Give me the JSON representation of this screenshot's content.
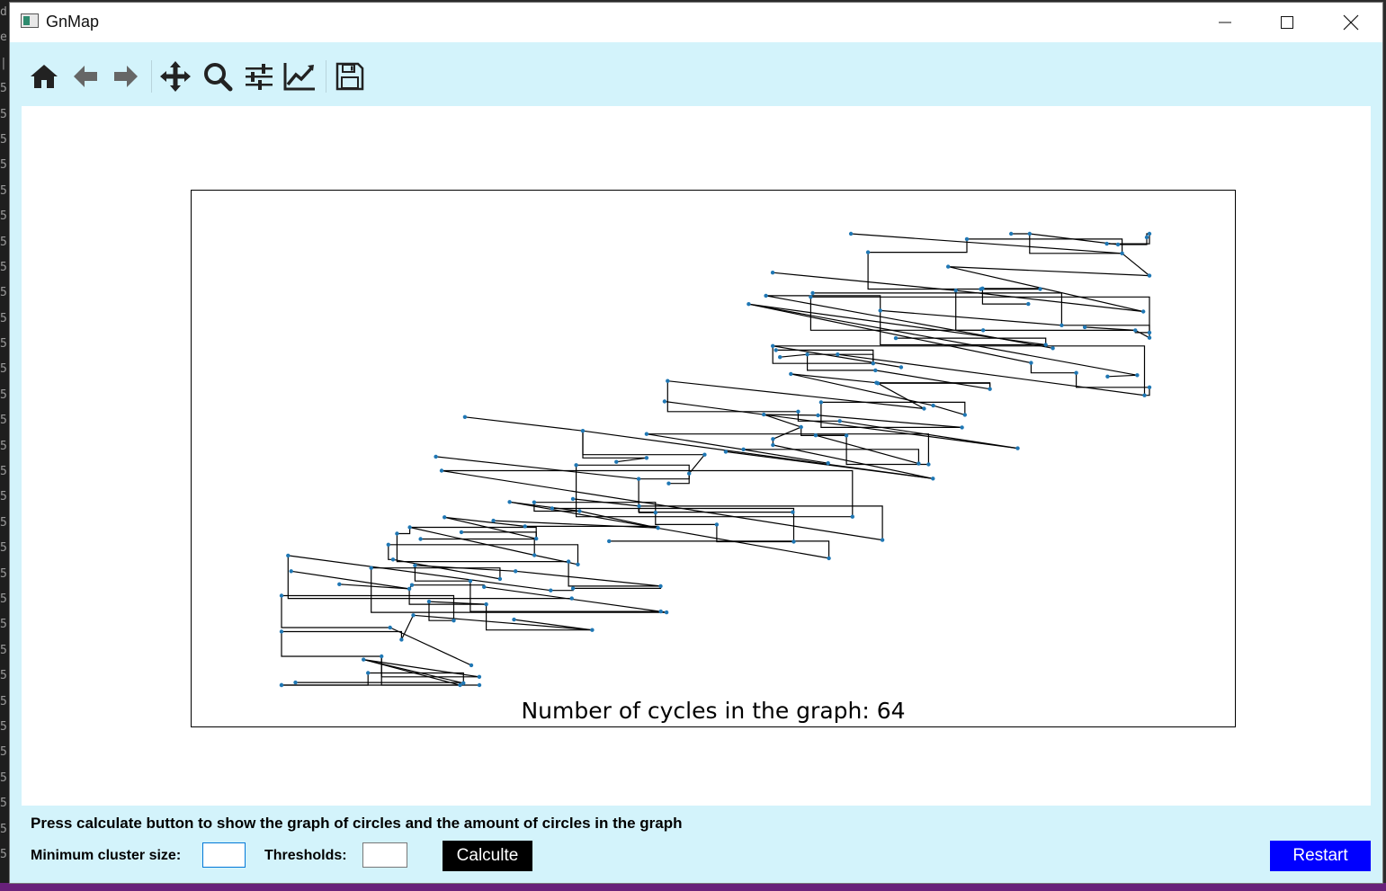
{
  "window": {
    "title": "GnMap"
  },
  "toolbar": {
    "icons": [
      "home-icon",
      "back-arrow-icon",
      "forward-arrow-icon",
      "pan-move-icon",
      "zoom-magnifier-icon",
      "configure-subplots-icon",
      "edit-axis-icon",
      "save-floppy-icon"
    ]
  },
  "chart_data": {
    "type": "network-graph",
    "annotation": "Number of cycles in the graph: 64",
    "node_color": "#1f77b4",
    "edge_color": "#000000",
    "axes_frame": true
  },
  "controls": {
    "prompt": "Press calculate button to show the graph of circles and the amount of circles in the graph",
    "min_cluster_label": "Minimum cluster size:",
    "min_cluster_value": "",
    "thresholds_label": "Thresholds:",
    "thresholds_value": "",
    "calculate_label": "Calculte",
    "restart_label": "Restart"
  },
  "colors": {
    "window_bg": "#d3f3fb",
    "calculate_bg": "#000000",
    "restart_bg": "#0000ff"
  }
}
